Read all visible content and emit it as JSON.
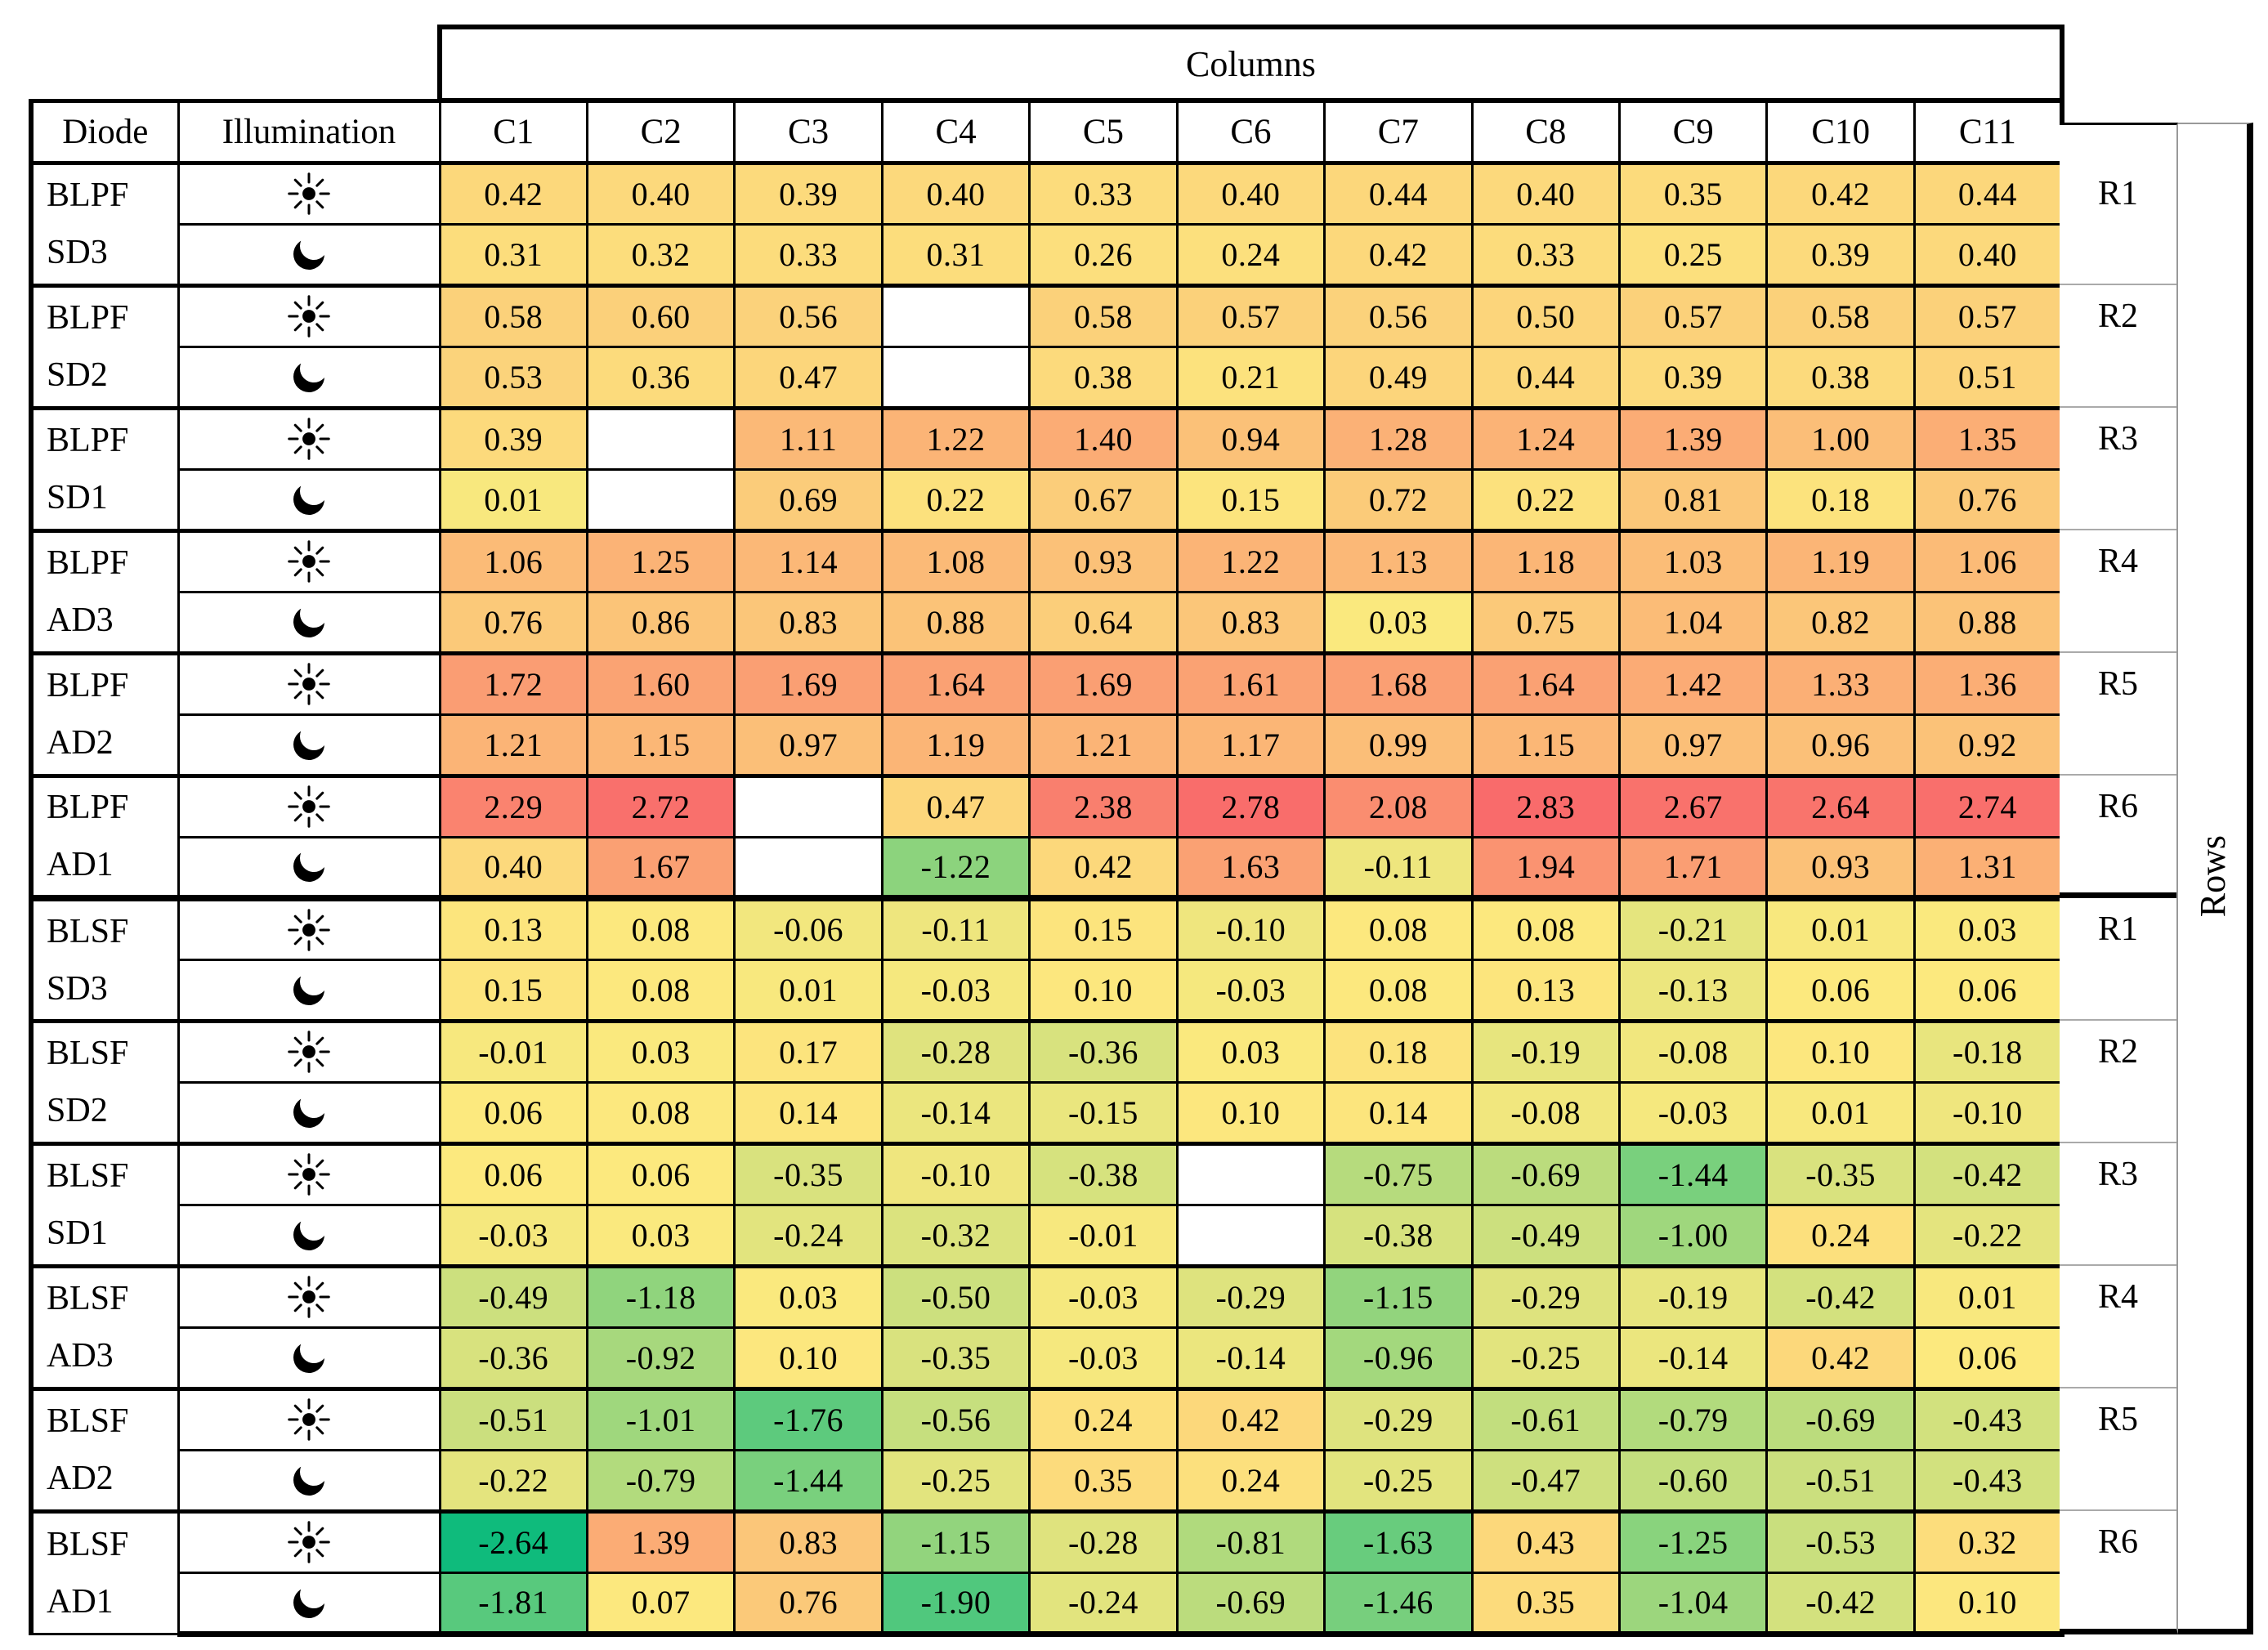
{
  "labels": {
    "columns": "Columns",
    "rows": "Rows",
    "diode": "Diode",
    "illumination": "Illumination"
  },
  "icons": {
    "sun": "sun-icon",
    "moon": "moon-icon"
  },
  "chart_data": {
    "type": "heatmap",
    "columns": [
      "C1",
      "C2",
      "C3",
      "C4",
      "C5",
      "C6",
      "C7",
      "C8",
      "C9",
      "C10",
      "C11"
    ],
    "row_pair_labels": [
      "R1",
      "R2",
      "R3",
      "R4",
      "R5",
      "R6",
      "R1",
      "R2",
      "R3",
      "R4",
      "R5",
      "R6"
    ],
    "row_groups": [
      {
        "family": "BLPF",
        "device": "SD3",
        "row_label": "R1",
        "sun": [
          0.42,
          0.4,
          0.39,
          0.4,
          0.33,
          0.4,
          0.44,
          0.4,
          0.35,
          0.42,
          0.44
        ],
        "moon": [
          0.31,
          0.32,
          0.33,
          0.31,
          0.26,
          0.24,
          0.42,
          0.33,
          0.25,
          0.39,
          0.4
        ]
      },
      {
        "family": "BLPF",
        "device": "SD2",
        "row_label": "R2",
        "sun": [
          0.58,
          0.6,
          0.56,
          null,
          0.58,
          0.57,
          0.56,
          0.5,
          0.57,
          0.58,
          0.57
        ],
        "moon": [
          0.53,
          0.36,
          0.47,
          null,
          0.38,
          0.21,
          0.49,
          0.44,
          0.39,
          0.38,
          0.51
        ]
      },
      {
        "family": "BLPF",
        "device": "SD1",
        "row_label": "R3",
        "sun": [
          0.39,
          null,
          1.11,
          1.22,
          1.4,
          0.94,
          1.28,
          1.24,
          1.39,
          1.0,
          1.35
        ],
        "moon": [
          0.01,
          null,
          0.69,
          0.22,
          0.67,
          0.15,
          0.72,
          0.22,
          0.81,
          0.18,
          0.76
        ]
      },
      {
        "family": "BLPF",
        "device": "AD3",
        "row_label": "R4",
        "sun": [
          1.06,
          1.25,
          1.14,
          1.08,
          0.93,
          1.22,
          1.13,
          1.18,
          1.03,
          1.19,
          1.06
        ],
        "moon": [
          0.76,
          0.86,
          0.83,
          0.88,
          0.64,
          0.83,
          0.03,
          0.75,
          1.04,
          0.82,
          0.88
        ]
      },
      {
        "family": "BLPF",
        "device": "AD2",
        "row_label": "R5",
        "sun": [
          1.72,
          1.6,
          1.69,
          1.64,
          1.69,
          1.61,
          1.68,
          1.64,
          1.42,
          1.33,
          1.36
        ],
        "moon": [
          1.21,
          1.15,
          0.97,
          1.19,
          1.21,
          1.17,
          0.99,
          1.15,
          0.97,
          0.96,
          0.92
        ]
      },
      {
        "family": "BLPF",
        "device": "AD1",
        "row_label": "R6",
        "sun": [
          2.29,
          2.72,
          null,
          0.47,
          2.38,
          2.78,
          2.08,
          2.83,
          2.67,
          2.64,
          2.74
        ],
        "moon": [
          0.4,
          1.67,
          null,
          -1.22,
          0.42,
          1.63,
          -0.11,
          1.94,
          1.71,
          0.93,
          1.31
        ]
      },
      {
        "family": "BLSF",
        "device": "SD3",
        "row_label": "R1",
        "sun": [
          0.13,
          0.08,
          -0.06,
          -0.11,
          0.15,
          -0.1,
          0.08,
          0.08,
          -0.21,
          0.01,
          0.03
        ],
        "moon": [
          0.15,
          0.08,
          0.01,
          -0.03,
          0.1,
          -0.03,
          0.08,
          0.13,
          -0.13,
          0.06,
          0.06
        ]
      },
      {
        "family": "BLSF",
        "device": "SD2",
        "row_label": "R2",
        "sun": [
          -0.01,
          0.03,
          0.17,
          -0.28,
          -0.36,
          0.03,
          0.18,
          -0.19,
          -0.08,
          0.1,
          -0.18
        ],
        "moon": [
          0.06,
          0.08,
          0.14,
          -0.14,
          -0.15,
          0.1,
          0.14,
          -0.08,
          -0.03,
          0.01,
          -0.1
        ]
      },
      {
        "family": "BLSF",
        "device": "SD1",
        "row_label": "R3",
        "sun": [
          0.06,
          0.06,
          -0.35,
          -0.1,
          -0.38,
          null,
          -0.75,
          -0.69,
          -1.44,
          -0.35,
          -0.42
        ],
        "moon": [
          -0.03,
          0.03,
          -0.24,
          -0.32,
          -0.01,
          null,
          -0.38,
          -0.49,
          -1.0,
          0.24,
          -0.22
        ]
      },
      {
        "family": "BLSF",
        "device": "AD3",
        "row_label": "R4",
        "sun": [
          -0.49,
          -1.18,
          0.03,
          -0.5,
          -0.03,
          -0.29,
          -1.15,
          -0.29,
          -0.19,
          -0.42,
          0.01
        ],
        "moon": [
          -0.36,
          -0.92,
          0.1,
          -0.35,
          -0.03,
          -0.14,
          -0.96,
          -0.25,
          -0.14,
          0.42,
          0.06
        ]
      },
      {
        "family": "BLSF",
        "device": "AD2",
        "row_label": "R5",
        "sun": [
          -0.51,
          -1.01,
          -1.76,
          -0.56,
          0.24,
          0.42,
          -0.29,
          -0.61,
          -0.79,
          -0.69,
          -0.43
        ],
        "moon": [
          -0.22,
          -0.79,
          -1.44,
          -0.25,
          0.35,
          0.24,
          -0.25,
          -0.47,
          -0.6,
          -0.51,
          -0.43
        ]
      },
      {
        "family": "BLSF",
        "device": "AD1",
        "row_label": "R6",
        "sun": [
          -2.64,
          1.39,
          0.83,
          -1.15,
          -0.28,
          -0.81,
          -1.63,
          0.43,
          -1.25,
          -0.53,
          0.32
        ],
        "moon": [
          -1.81,
          0.07,
          0.76,
          -1.9,
          -0.24,
          -0.69,
          -1.46,
          0.35,
          -1.04,
          -0.42,
          0.1
        ]
      }
    ],
    "colormap": {
      "min": {
        "value": -2.64,
        "color": "#0fbb7c"
      },
      "mid": {
        "value": 0.05,
        "color": "#fce97e"
      },
      "max": {
        "value": 2.83,
        "color": "#f96b6b"
      }
    },
    "blank_color": "#ffffff",
    "legend_position": "none",
    "grid": true
  }
}
